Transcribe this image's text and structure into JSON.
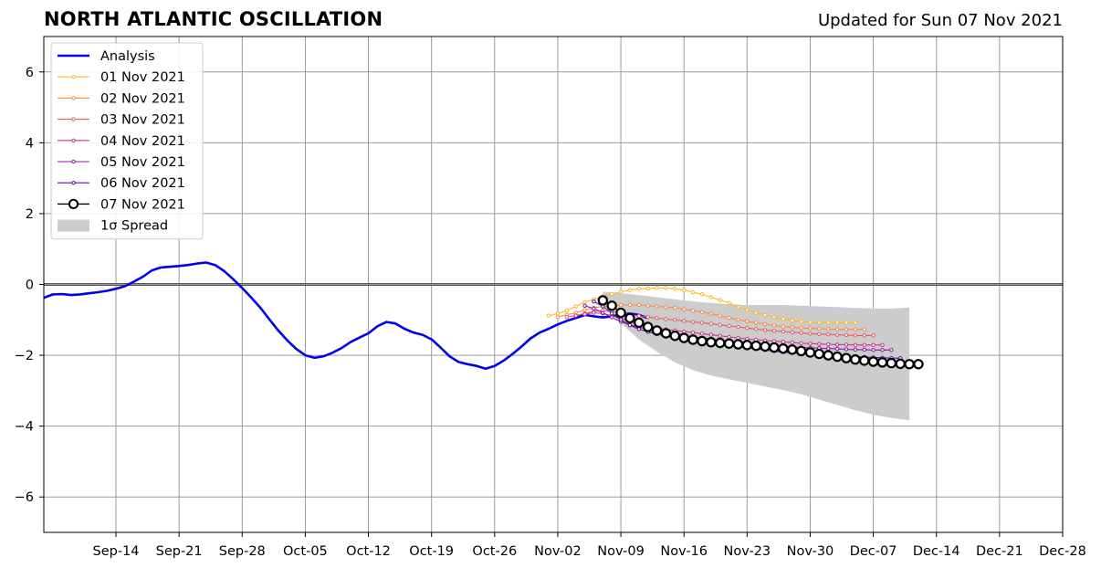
{
  "page": {
    "title": "NORTH ATLANTIC OSCILLATION",
    "updated": "Updated for Sun 07 Nov 2021"
  },
  "chart_data": {
    "type": "line",
    "title": "NORTH ATLANTIC OSCILLATION",
    "subtitle": "Updated for Sun 07 Nov 2021",
    "xlabel": "",
    "ylabel": "",
    "x_axis": "date",
    "xlim": [
      "2021-09-06",
      "2021-12-28"
    ],
    "ylim": [
      -7,
      7
    ],
    "x_ticks": [
      {
        "date": "2021-09-14",
        "label": "Sep-14"
      },
      {
        "date": "2021-09-21",
        "label": "Sep-21"
      },
      {
        "date": "2021-09-28",
        "label": "Sep-28"
      },
      {
        "date": "2021-10-05",
        "label": "Oct-05"
      },
      {
        "date": "2021-10-12",
        "label": "Oct-12"
      },
      {
        "date": "2021-10-19",
        "label": "Oct-19"
      },
      {
        "date": "2021-10-26",
        "label": "Oct-26"
      },
      {
        "date": "2021-11-02",
        "label": "Nov-02"
      },
      {
        "date": "2021-11-09",
        "label": "Nov-09"
      },
      {
        "date": "2021-11-16",
        "label": "Nov-16"
      },
      {
        "date": "2021-11-23",
        "label": "Nov-23"
      },
      {
        "date": "2021-11-30",
        "label": "Nov-30"
      },
      {
        "date": "2021-12-07",
        "label": "Dec-07"
      },
      {
        "date": "2021-12-14",
        "label": "Dec-14"
      },
      {
        "date": "2021-12-21",
        "label": "Dec-21"
      },
      {
        "date": "2021-12-28",
        "label": "Dec-28"
      }
    ],
    "y_ticks": [
      {
        "value": 6,
        "label": "6"
      },
      {
        "value": 4,
        "label": "4"
      },
      {
        "value": 2,
        "label": "2"
      },
      {
        "value": 0,
        "label": "0"
      },
      {
        "value": -2,
        "label": "−2"
      },
      {
        "value": -4,
        "label": "−4"
      },
      {
        "value": -6,
        "label": "−6"
      }
    ],
    "grid": true,
    "zero_line": true,
    "legend": {
      "placement": "top-left"
    },
    "series": [
      {
        "name": "Analysis",
        "role": "analysis",
        "color": "#0000ee",
        "start": "2021-09-06",
        "values": [
          -0.38,
          -0.28,
          -0.27,
          -0.3,
          -0.28,
          -0.25,
          -0.22,
          -0.18,
          -0.12,
          -0.05,
          0.08,
          0.22,
          0.4,
          0.48,
          0.5,
          0.52,
          0.55,
          0.59,
          0.62,
          0.55,
          0.38,
          0.15,
          -0.1,
          -0.37,
          -0.65,
          -0.98,
          -1.3,
          -1.58,
          -1.82,
          -2.0,
          -2.07,
          -2.03,
          -1.93,
          -1.8,
          -1.63,
          -1.5,
          -1.38,
          -1.18,
          -1.06,
          -1.1,
          -1.25,
          -1.36,
          -1.42,
          -1.55,
          -1.78,
          -2.03,
          -2.19,
          -2.25,
          -2.3,
          -2.38,
          -2.3,
          -2.15,
          -1.96,
          -1.75,
          -1.52,
          -1.36,
          -1.25,
          -1.13,
          -1.03,
          -0.95,
          -0.86,
          -0.9,
          -0.93,
          -0.9,
          -0.85,
          -0.82,
          -0.86,
          -0.95
        ]
      },
      {
        "name": "01 Nov 2021",
        "role": "forecast",
        "color": "#fcb929",
        "start": "2021-11-01",
        "values": [
          -0.88,
          -0.82,
          -0.74,
          -0.62,
          -0.5,
          -0.42,
          -0.33,
          -0.27,
          -0.21,
          -0.16,
          -0.12,
          -0.11,
          -0.1,
          -0.1,
          -0.12,
          -0.16,
          -0.22,
          -0.28,
          -0.36,
          -0.44,
          -0.52,
          -0.64,
          -0.72,
          -0.8,
          -0.86,
          -0.92,
          -0.97,
          -1.02,
          -1.05,
          -1.07,
          -1.08,
          -1.08,
          -1.08,
          -1.08,
          -1.08
        ]
      },
      {
        "name": "02 Nov 2021",
        "role": "forecast",
        "color": "#f58b4a",
        "start": "2021-11-02",
        "values": [
          -0.92,
          -0.86,
          -0.8,
          -0.72,
          -0.66,
          -0.62,
          -0.6,
          -0.58,
          -0.58,
          -0.58,
          -0.6,
          -0.62,
          -0.64,
          -0.66,
          -0.7,
          -0.74,
          -0.78,
          -0.83,
          -0.88,
          -0.94,
          -0.99,
          -1.04,
          -1.08,
          -1.12,
          -1.16,
          -1.19,
          -1.21,
          -1.23,
          -1.24,
          -1.25,
          -1.26,
          -1.27,
          -1.27,
          -1.27,
          -1.27
        ]
      },
      {
        "name": "03 Nov 2021",
        "role": "forecast",
        "color": "#e55c69",
        "start": "2021-11-03",
        "values": [
          -0.92,
          -0.88,
          -0.82,
          -0.76,
          -0.74,
          -0.76,
          -0.8,
          -0.85,
          -0.89,
          -0.92,
          -0.95,
          -0.98,
          -1.0,
          -1.03,
          -1.06,
          -1.08,
          -1.11,
          -1.14,
          -1.17,
          -1.2,
          -1.23,
          -1.26,
          -1.29,
          -1.31,
          -1.33,
          -1.35,
          -1.37,
          -1.39,
          -1.4,
          -1.41,
          -1.42,
          -1.43,
          -1.44,
          -1.44,
          -1.44
        ]
      },
      {
        "name": "04 Nov 2021",
        "role": "forecast",
        "color": "#c4398c",
        "start": "2021-11-04",
        "values": [
          -0.88,
          -0.84,
          -0.8,
          -0.82,
          -0.88,
          -0.96,
          -1.05,
          -1.13,
          -1.19,
          -1.23,
          -1.27,
          -1.3,
          -1.33,
          -1.36,
          -1.39,
          -1.42,
          -1.45,
          -1.48,
          -1.51,
          -1.54,
          -1.56,
          -1.58,
          -1.6,
          -1.62,
          -1.64,
          -1.66,
          -1.67,
          -1.68,
          -1.69,
          -1.7,
          -1.7,
          -1.71,
          -1.71,
          -1.71,
          -1.71
        ]
      },
      {
        "name": "05 Nov 2021",
        "role": "forecast",
        "color": "#9117a4",
        "start": "2021-11-05",
        "values": [
          -0.6,
          -0.68,
          -0.8,
          -0.93,
          -1.05,
          -1.14,
          -1.21,
          -1.26,
          -1.31,
          -1.36,
          -1.4,
          -1.44,
          -1.48,
          -1.51,
          -1.54,
          -1.57,
          -1.6,
          -1.63,
          -1.66,
          -1.68,
          -1.7,
          -1.72,
          -1.74,
          -1.76,
          -1.78,
          -1.79,
          -1.8,
          -1.81,
          -1.82,
          -1.83,
          -1.84,
          -1.84,
          -1.85,
          -1.85,
          -1.85
        ]
      },
      {
        "name": "06 Nov 2021",
        "role": "forecast",
        "color": "#5c0ea0",
        "start": "2021-11-06",
        "values": [
          -0.48,
          -0.62,
          -0.82,
          -1.0,
          -1.15,
          -1.26,
          -1.34,
          -1.4,
          -1.46,
          -1.51,
          -1.56,
          -1.6,
          -1.64,
          -1.67,
          -1.7,
          -1.73,
          -1.76,
          -1.79,
          -1.82,
          -1.85,
          -1.88,
          -1.91,
          -1.93,
          -1.95,
          -1.97,
          -1.99,
          -2.01,
          -2.02,
          -2.03,
          -2.04,
          -2.05,
          -2.06,
          -2.07,
          -2.08,
          -2.08
        ]
      },
      {
        "name": "07 Nov 2021",
        "role": "forecast-current",
        "color": "#000000",
        "start": "2021-11-07",
        "values": [
          -0.45,
          -0.6,
          -0.8,
          -0.95,
          -1.08,
          -1.2,
          -1.3,
          -1.38,
          -1.45,
          -1.51,
          -1.56,
          -1.6,
          -1.63,
          -1.65,
          -1.67,
          -1.69,
          -1.71,
          -1.73,
          -1.75,
          -1.78,
          -1.81,
          -1.84,
          -1.88,
          -1.92,
          -1.96,
          -2.0,
          -2.04,
          -2.08,
          -2.12,
          -2.15,
          -2.18,
          -2.2,
          -2.22,
          -2.24,
          -2.25,
          -2.25
        ]
      }
    ],
    "spread": {
      "name": "1σ Spread",
      "color": "#cccccc",
      "points": [
        {
          "date": "2021-11-07",
          "upper": -0.2,
          "lower": -0.6
        },
        {
          "date": "2021-11-09",
          "upper": -0.25,
          "lower": -1.1
        },
        {
          "date": "2021-11-11",
          "upper": -0.3,
          "lower": -1.55
        },
        {
          "date": "2021-11-13",
          "upper": -0.36,
          "lower": -1.9
        },
        {
          "date": "2021-11-15",
          "upper": -0.42,
          "lower": -2.2
        },
        {
          "date": "2021-11-17",
          "upper": -0.48,
          "lower": -2.42
        },
        {
          "date": "2021-11-19",
          "upper": -0.52,
          "lower": -2.57
        },
        {
          "date": "2021-11-21",
          "upper": -0.56,
          "lower": -2.68
        },
        {
          "date": "2021-11-23",
          "upper": -0.58,
          "lower": -2.78
        },
        {
          "date": "2021-11-25",
          "upper": -0.58,
          "lower": -2.88
        },
        {
          "date": "2021-11-27",
          "upper": -0.58,
          "lower": -2.98
        },
        {
          "date": "2021-11-29",
          "upper": -0.6,
          "lower": -3.1
        },
        {
          "date": "2021-12-01",
          "upper": -0.62,
          "lower": -3.25
        },
        {
          "date": "2021-12-03",
          "upper": -0.64,
          "lower": -3.4
        },
        {
          "date": "2021-12-05",
          "upper": -0.66,
          "lower": -3.55
        },
        {
          "date": "2021-12-07",
          "upper": -0.68,
          "lower": -3.68
        },
        {
          "date": "2021-12-09",
          "upper": -0.68,
          "lower": -3.77
        },
        {
          "date": "2021-12-11",
          "upper": -0.65,
          "lower": -3.83
        }
      ]
    }
  }
}
